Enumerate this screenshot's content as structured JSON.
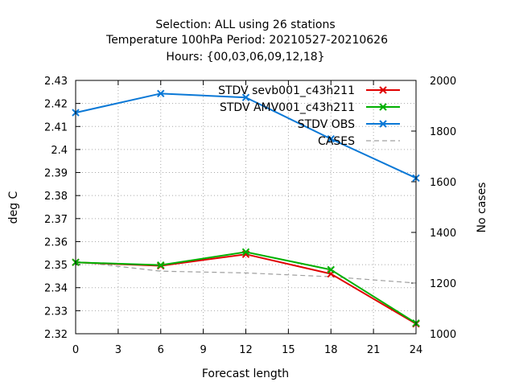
{
  "chart_data": {
    "type": "line",
    "title_lines": [
      "Selection: ALL using     26 stations",
      "Temperature 100hPa   Period: 20210527-20210626",
      "Hours: {00,03,06,09,12,18}"
    ],
    "xlabel": "Forecast length",
    "ylabel": "deg C",
    "y2label": "No cases",
    "x_ticks": [
      "0",
      "3",
      "6",
      "9",
      "12",
      "15",
      "18",
      "21",
      "24"
    ],
    "y_ticks": [
      "2.32",
      "2.33",
      "2.34",
      "2.35",
      "2.36",
      "2.37",
      "2.38",
      "2.39",
      "2.4",
      "2.41",
      "2.42",
      "2.43"
    ],
    "y2_ticks": [
      "1000",
      "1200",
      "1400",
      "1600",
      "1800",
      "2000"
    ],
    "xlim": [
      0,
      24
    ],
    "ylim": [
      2.32,
      2.43
    ],
    "y2lim": [
      1000,
      2000
    ],
    "grid": true,
    "legend_position": "top-right",
    "x": [
      0,
      6,
      12,
      18,
      24
    ],
    "series": [
      {
        "name": "STDV sevb001_c43h211",
        "color": "#e00000",
        "axis": "y",
        "marker": "x",
        "values": [
          2.351,
          2.3495,
          2.3545,
          2.346,
          2.3243
        ]
      },
      {
        "name": "STDV AMV001_c43h211",
        "color": "#00b000",
        "axis": "y",
        "marker": "x",
        "values": [
          2.351,
          2.3498,
          2.3555,
          2.3478,
          2.3246
        ]
      },
      {
        "name": "STDV OBS",
        "color": "#0a78d6",
        "axis": "y",
        "marker": "x",
        "values": [
          2.416,
          2.4243,
          2.4226,
          2.4046,
          2.3876
        ]
      },
      {
        "name": "CASES",
        "color": "#a0a0a0",
        "axis": "y2",
        "marker": "none",
        "dashed": true,
        "values": [
          1285,
          1247,
          1240,
          1225,
          1200
        ]
      }
    ]
  }
}
